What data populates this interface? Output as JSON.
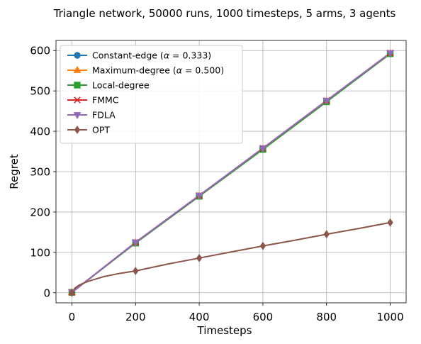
{
  "chart_data": {
    "type": "line",
    "title": "Triangle network, 50000 runs, 1000 timesteps, 5 arms, 3 agents",
    "xlabel": "Timesteps",
    "ylabel": "Regret",
    "xlim": [
      -50,
      1050
    ],
    "ylim": [
      -25,
      625
    ],
    "xticks": [
      0,
      200,
      400,
      600,
      800,
      1000
    ],
    "yticks": [
      0,
      100,
      200,
      300,
      400,
      500,
      600
    ],
    "grid": true,
    "legend_position": "top-left",
    "series": [
      {
        "name": "Constant-edge (α = 0.333)",
        "legend_main": "Constant-edge (",
        "legend_alpha": "α",
        "legend_rest": " = 0.333)",
        "color": "#1f77b4",
        "marker": "circle",
        "x": [
          0,
          200,
          400,
          600,
          800,
          1000
        ],
        "values": [
          1,
          124,
          240,
          357,
          475,
          593
        ]
      },
      {
        "name": "Maximum-degree (α = 0.500)",
        "legend_main": "Maximum-degree (",
        "legend_alpha": "α",
        "legend_rest": " = 0.500)",
        "color": "#ff7f0e",
        "marker": "triangle-up",
        "x": [
          0,
          200,
          400,
          600,
          800,
          1000
        ],
        "values": [
          1,
          124,
          240,
          357,
          475,
          593
        ]
      },
      {
        "name": "Local-degree",
        "legend_main": "Local-degree",
        "legend_alpha": "",
        "legend_rest": "",
        "color": "#2ca02c",
        "marker": "square",
        "x": [
          0,
          200,
          400,
          600,
          800,
          1000
        ],
        "values": [
          1,
          123,
          239,
          355,
          473,
          592
        ]
      },
      {
        "name": "FMMC",
        "legend_main": "FMMC",
        "legend_alpha": "",
        "legend_rest": "",
        "color": "#d62728",
        "marker": "x",
        "x": [
          0,
          200,
          400,
          600,
          800,
          1000
        ],
        "values": [
          1,
          125,
          241,
          358,
          476,
          594
        ]
      },
      {
        "name": "FDLA",
        "legend_main": "FDLA",
        "legend_alpha": "",
        "legend_rest": "",
        "color": "#9467bd",
        "marker": "triangle-down",
        "x": [
          0,
          200,
          400,
          600,
          800,
          1000
        ],
        "values": [
          1,
          125,
          241,
          358,
          476,
          594
        ]
      },
      {
        "name": "OPT",
        "legend_main": "OPT",
        "legend_alpha": "",
        "legend_rest": "",
        "color": "#8c564b",
        "marker": "diamond",
        "x": [
          0,
          10,
          25,
          50,
          100,
          150,
          200,
          300,
          400,
          500,
          600,
          700,
          800,
          900,
          1000
        ],
        "values": [
          0,
          12,
          20,
          28,
          40,
          48,
          54,
          71,
          86,
          101,
          116,
          130,
          145,
          159,
          174
        ]
      }
    ]
  }
}
